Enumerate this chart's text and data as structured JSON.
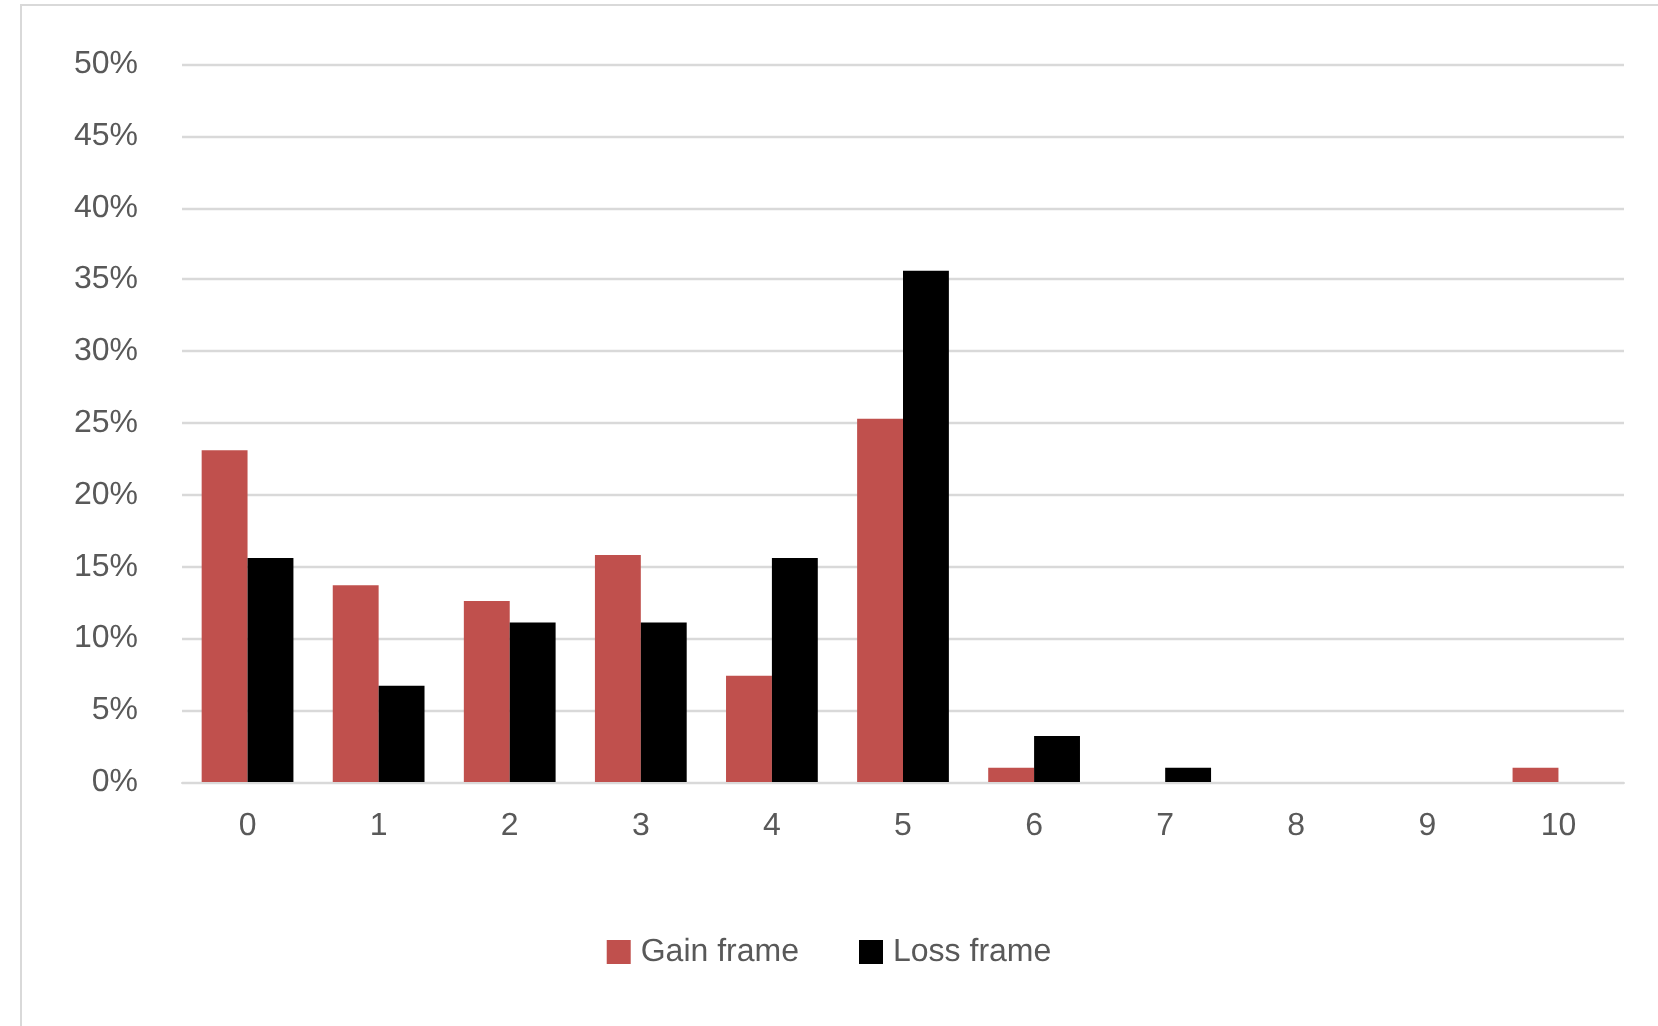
{
  "chart_data": {
    "type": "bar",
    "categories": [
      "0",
      "1",
      "2",
      "3",
      "4",
      "5",
      "6",
      "7",
      "8",
      "9",
      "10"
    ],
    "series": [
      {
        "name": "Gain frame",
        "color": "#c0504d",
        "values": [
          23.1,
          13.7,
          12.6,
          15.8,
          7.4,
          25.3,
          1.0,
          0,
          0,
          0,
          1.0
        ]
      },
      {
        "name": "Loss frame",
        "color": "#000000",
        "values": [
          15.6,
          6.7,
          11.1,
          11.1,
          15.6,
          35.6,
          3.2,
          1.0,
          0,
          0,
          0
        ]
      }
    ],
    "ylim": [
      0,
      50
    ],
    "yticks": [
      {
        "value": 0,
        "label": "0%"
      },
      {
        "value": 5,
        "label": "5%"
      },
      {
        "value": 10,
        "label": "10%"
      },
      {
        "value": 15,
        "label": "15%"
      },
      {
        "value": 20,
        "label": "20%"
      },
      {
        "value": 25,
        "label": "25%"
      },
      {
        "value": 30,
        "label": "30%"
      },
      {
        "value": 35,
        "label": "35%"
      },
      {
        "value": 40,
        "label": "40%"
      },
      {
        "value": 45,
        "label": "45%"
      },
      {
        "value": 50,
        "label": "50%"
      }
    ],
    "grid": "y",
    "legend": "bottom"
  }
}
